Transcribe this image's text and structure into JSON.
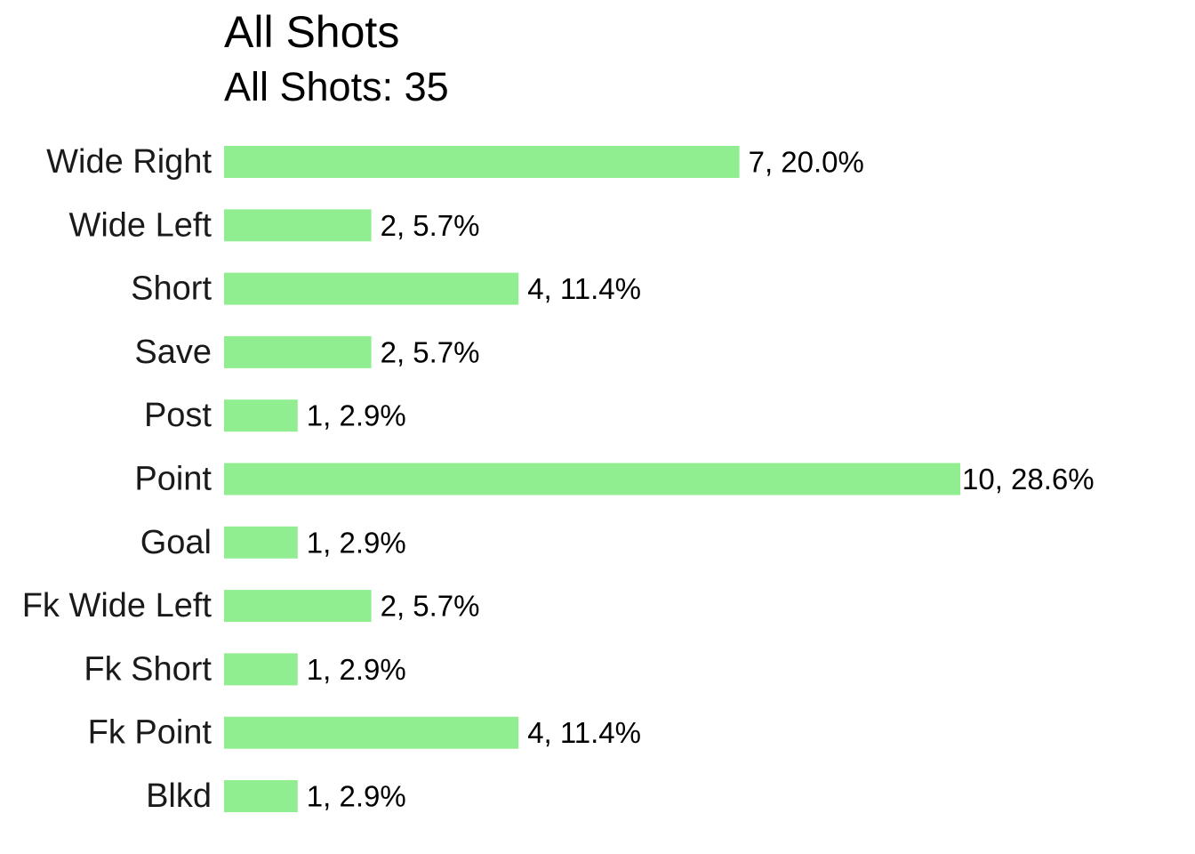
{
  "chart_data": {
    "type": "bar",
    "orientation": "horizontal",
    "title": "All Shots",
    "subtitle": "All Shots: 35",
    "xlabel": "",
    "ylabel": "",
    "grid": false,
    "bar_color": "#90EE90",
    "xlim": [
      0,
      10
    ],
    "categories": [
      "Wide Right",
      "Wide Left",
      "Short",
      "Save",
      "Post",
      "Point",
      "Goal",
      "Fk Wide Left",
      "Fk Short",
      "Fk Point",
      "Blkd"
    ],
    "values": [
      7,
      2,
      4,
      2,
      1,
      10,
      1,
      2,
      1,
      4,
      1
    ],
    "data_labels": [
      "7, 20.0%",
      "2, 5.7%",
      "4, 11.4%",
      "2, 5.7%",
      "1, 2.9%",
      "10, 28.6%",
      "1, 2.9%",
      "2, 5.7%",
      "1, 2.9%",
      "4, 11.4%",
      "1, 2.9%"
    ]
  }
}
